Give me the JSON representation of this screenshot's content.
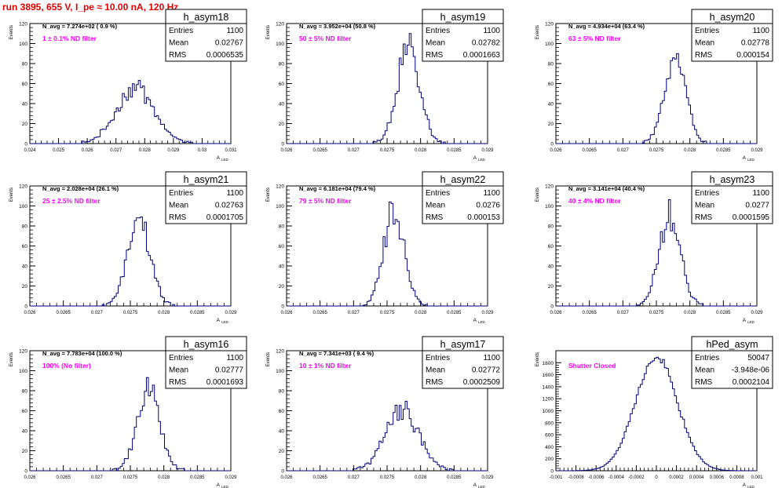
{
  "run_title": "run 3895,   655 V, I_pe ≈ 10.00 nA, 120 Hz",
  "ylabel": "Events",
  "xlabel": "A",
  "xlabel_sub": "LED",
  "stat_labels": {
    "entries": "Entries",
    "mean": "Mean",
    "rms": "RMS"
  },
  "colors": {
    "histogram": "#00007f",
    "filter_label": "#ff00ff",
    "title": "#e00000",
    "axis": "#000000"
  },
  "chart_data": [
    {
      "type": "bar",
      "name": "h_asym18",
      "navg": "N_avg = 7.274e+02 ( 0.9 %)",
      "filter": "1 ± 0.1% ND filter",
      "entries": "1100",
      "mean": "0.02767",
      "rms": "0.0006535",
      "xlim": [
        0.024,
        0.031
      ],
      "ylim": [
        0,
        120
      ],
      "xticks": [
        "0.024",
        "0.025",
        "0.026",
        "0.027",
        "0.028",
        "0.029",
        "0.03",
        "0.031"
      ],
      "yticks": [
        "0",
        "20",
        "40",
        "60",
        "80",
        "100",
        "120"
      ],
      "mu": 0.02767,
      "sigma": 0.00065,
      "peak": 56
    },
    {
      "type": "bar",
      "name": "h_asym19",
      "navg": "N_avg = 3.952e+04 (50.8 %)",
      "filter": "50 ± 5% ND filter",
      "entries": "1100",
      "mean": "0.02782",
      "rms": "0.0001663",
      "xlim": [
        0.026,
        0.029
      ],
      "ylim": [
        0,
        120
      ],
      "xticks": [
        "0.026",
        "0.0265",
        "0.027",
        "0.0275",
        "0.028",
        "0.0285",
        "0.029"
      ],
      "yticks": [
        "0",
        "20",
        "40",
        "60",
        "80",
        "100",
        "120"
      ],
      "mu": 0.02782,
      "sigma": 0.000166,
      "peak": 96
    },
    {
      "type": "bar",
      "name": "h_asym20",
      "navg": "N_avg = 4.934e+04 (63.4 %)",
      "filter": "63 ± 5% ND filter",
      "entries": "1100",
      "mean": "0.02778",
      "rms": "0.000154",
      "xlim": [
        0.026,
        0.029
      ],
      "ylim": [
        0,
        120
      ],
      "xticks": [
        "0.026",
        "0.0265",
        "0.027",
        "0.0275",
        "0.028",
        "0.0285",
        "0.029"
      ],
      "yticks": [
        "0",
        "20",
        "40",
        "60",
        "80",
        "100",
        "120"
      ],
      "mu": 0.02778,
      "sigma": 0.000154,
      "peak": 92
    },
    {
      "type": "bar",
      "name": "h_asym21",
      "navg": "N_avg = 2.028e+04 (26.1 %)",
      "filter": "25 ± 2.5% ND filter",
      "entries": "1100",
      "mean": "0.02763",
      "rms": "0.0001705",
      "xlim": [
        0.026,
        0.029
      ],
      "ylim": [
        0,
        120
      ],
      "xticks": [
        "0.026",
        "0.0265",
        "0.027",
        "0.0275",
        "0.028",
        "0.0285",
        "0.029"
      ],
      "yticks": [
        "0",
        "20",
        "40",
        "60",
        "80",
        "100",
        "120"
      ],
      "mu": 0.02763,
      "sigma": 0.00017,
      "peak": 83
    },
    {
      "type": "bar",
      "name": "h_asym22",
      "navg": "N_avg = 6.181e+04 (79.4 %)",
      "filter": "79 ± 5% ND filter",
      "entries": "1100",
      "mean": "0.0276",
      "rms": "0.000153",
      "xlim": [
        0.026,
        0.029
      ],
      "ylim": [
        0,
        120
      ],
      "xticks": [
        "0.026",
        "0.0265",
        "0.027",
        "0.0275",
        "0.028",
        "0.0285",
        "0.029"
      ],
      "yticks": [
        "0",
        "20",
        "40",
        "60",
        "80",
        "100",
        "120"
      ],
      "mu": 0.0276,
      "sigma": 0.000153,
      "peak": 94
    },
    {
      "type": "bar",
      "name": "h_asym23",
      "navg": "N_avg = 3.141e+04 (40.4 %)",
      "filter": "40 ± 4% ND filter",
      "entries": "1100",
      "mean": "0.0277",
      "rms": "0.0001595",
      "xlim": [
        0.026,
        0.029
      ],
      "ylim": [
        0,
        120
      ],
      "xticks": [
        "0.026",
        "0.0265",
        "0.027",
        "0.0275",
        "0.028",
        "0.0285",
        "0.029"
      ],
      "yticks": [
        "0",
        "20",
        "40",
        "60",
        "80",
        "100",
        "120"
      ],
      "mu": 0.0277,
      "sigma": 0.00016,
      "peak": 91
    },
    {
      "type": "bar",
      "name": "h_asym16",
      "navg": "N_avg = 7.783e+04 (100.0 %)",
      "filter": "100% (No filter)",
      "entries": "1100",
      "mean": "0.02777",
      "rms": "0.0001693",
      "xlim": [
        0.026,
        0.029
      ],
      "ylim": [
        0,
        120
      ],
      "xticks": [
        "0.026",
        "0.0265",
        "0.027",
        "0.0275",
        "0.028",
        "0.0285",
        "0.029"
      ],
      "yticks": [
        "0",
        "20",
        "40",
        "60",
        "80",
        "100",
        "120"
      ],
      "mu": 0.02777,
      "sigma": 0.00017,
      "peak": 80
    },
    {
      "type": "bar",
      "name": "h_asym17",
      "navg": "N_avg = 7.341e+03 ( 9.4 %)",
      "filter": "10 ± 1% ND filter",
      "entries": "1100",
      "mean": "0.02772",
      "rms": "0.0002509",
      "xlim": [
        0.026,
        0.029
      ],
      "ylim": [
        0,
        120
      ],
      "xticks": [
        "0.026",
        "0.0265",
        "0.027",
        "0.0275",
        "0.028",
        "0.0285",
        "0.029"
      ],
      "yticks": [
        "0",
        "20",
        "40",
        "60",
        "80",
        "100",
        "120"
      ],
      "mu": 0.02772,
      "sigma": 0.00025,
      "peak": 60
    },
    {
      "type": "bar",
      "name": "hPed_asym",
      "navg": "",
      "filter": "Shutter Closed",
      "entries": "50047",
      "mean": "-3.948e-06",
      "rms": "0.0002104",
      "xlim": [
        -0.001,
        0.001
      ],
      "ylim": [
        0,
        2000
      ],
      "xticks": [
        "-0.001",
        "-0.0008",
        "-0.0006",
        "-0.0004",
        "-0.0002",
        "0",
        "0.0002",
        "0.0004",
        "0.0006",
        "0.0008",
        "0.001"
      ],
      "yticks": [
        "0",
        "200",
        "400",
        "600",
        "800",
        "1000",
        "1200",
        "1400",
        "1600",
        "1800"
      ],
      "mu": 0.0,
      "sigma": 0.00021,
      "peak": 1890
    }
  ]
}
